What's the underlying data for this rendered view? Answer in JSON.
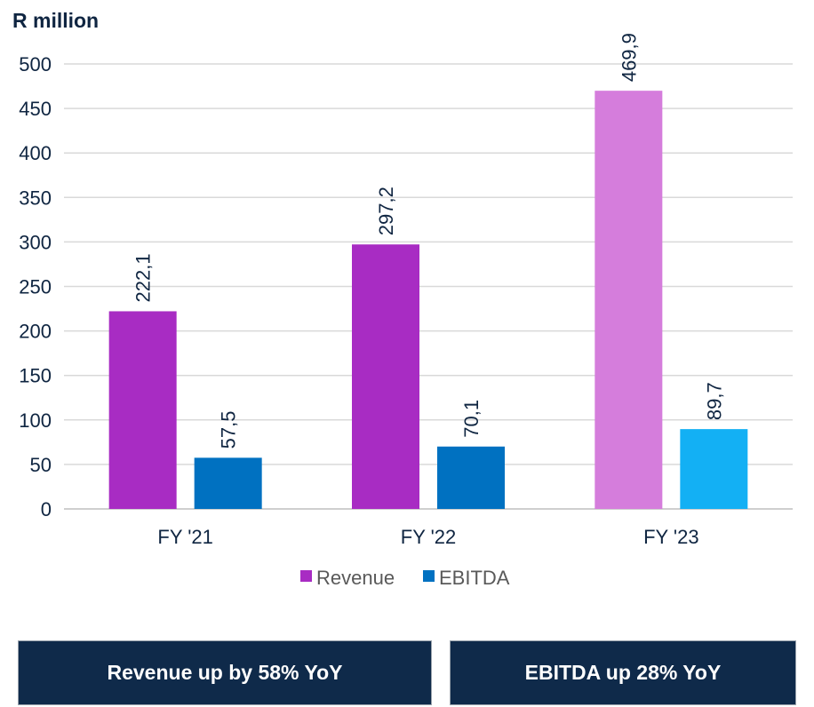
{
  "unit_label": "R million",
  "chart_data": {
    "type": "bar",
    "categories": [
      "FY '21",
      "FY '22",
      "FY '23"
    ],
    "series": [
      {
        "name": "Revenue",
        "values": [
          222.1,
          297.2,
          469.9
        ],
        "labels": [
          "222,1",
          "297,2",
          "469,9"
        ],
        "colors": [
          "#a82cc3",
          "#a82cc3",
          "#d57ddc"
        ],
        "legend_color": "#a82cc3"
      },
      {
        "name": "EBITDA",
        "values": [
          57.5,
          70.1,
          89.7
        ],
        "labels": [
          "57,5",
          "70,1",
          "89,7"
        ],
        "colors": [
          "#0071c1",
          "#0071c1",
          "#13b0f4"
        ],
        "legend_color": "#0071c1"
      }
    ],
    "ylim": [
      0,
      500
    ],
    "yticks": [
      0,
      50,
      100,
      150,
      200,
      250,
      300,
      350,
      400,
      450,
      500
    ],
    "grid": true,
    "legend_position": "bottom-center",
    "title": "",
    "xlabel": "",
    "ylabel": "R million"
  },
  "callouts": {
    "revenue": "Revenue up by 58% YoY",
    "ebitda": "EBITDA up 28% YoY"
  },
  "colors": {
    "text_dark": "#0f2541",
    "grid": "#d9d9d9",
    "callout_bg": "#0f2a4a"
  }
}
